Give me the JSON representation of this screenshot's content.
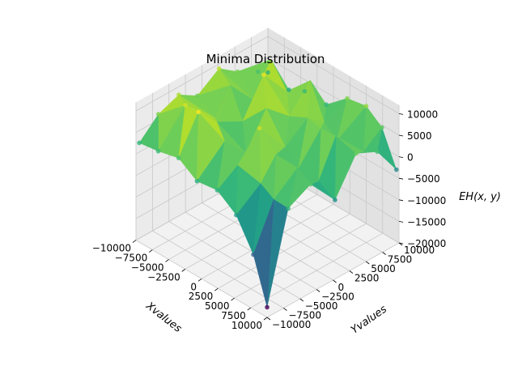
{
  "chart_data": {
    "type": "surface3d",
    "title": "Minima Distribution",
    "xlabel": "Xvalues",
    "ylabel": "Yvalues",
    "zlabel": "EH(x, y)",
    "xlim": [
      -10000,
      10000
    ],
    "ylim": [
      -10000,
      10000
    ],
    "zlim": [
      -20000,
      12000
    ],
    "x_ticks": [
      "−10000",
      "−7500",
      "−5000",
      "−2500",
      "0",
      "2500",
      "5000",
      "7500",
      "10000"
    ],
    "y_ticks": [
      "−10000",
      "−7500",
      "−5000",
      "−2500",
      "0",
      "2500",
      "5000",
      "7500",
      "10000"
    ],
    "z_ticks": [
      "−20000",
      "−15000",
      "−10000",
      "−5000",
      "0",
      "5000",
      "10000"
    ],
    "colormap": "viridis",
    "grid": true,
    "points": [
      {
        "x": -9800,
        "y": -9700,
        "z": 2500
      },
      {
        "x": -9600,
        "y": -7000,
        "z": 7000
      },
      {
        "x": -9500,
        "y": -4000,
        "z": 9000
      },
      {
        "x": -9700,
        "y": -1000,
        "z": 6000
      },
      {
        "x": -9400,
        "y": 2000,
        "z": 10000
      },
      {
        "x": -9600,
        "y": 5000,
        "z": 6500
      },
      {
        "x": -9500,
        "y": 8000,
        "z": 4000
      },
      {
        "x": -9800,
        "y": 9800,
        "z": 2000
      },
      {
        "x": -7000,
        "y": -9600,
        "z": 3000
      },
      {
        "x": -6500,
        "y": -6000,
        "z": 11000
      },
      {
        "x": -6000,
        "y": -2000,
        "z": 5000
      },
      {
        "x": -7200,
        "y": 1500,
        "z": 8500
      },
      {
        "x": -6800,
        "y": 4500,
        "z": 3000
      },
      {
        "x": -7000,
        "y": 7500,
        "z": 9500
      },
      {
        "x": -6500,
        "y": 9700,
        "z": 1000
      },
      {
        "x": -4000,
        "y": -9500,
        "z": 4000
      },
      {
        "x": -3500,
        "y": -7000,
        "z": 13000
      },
      {
        "x": -4200,
        "y": -3500,
        "z": 7000
      },
      {
        "x": -3800,
        "y": 0,
        "z": 4500
      },
      {
        "x": -4100,
        "y": 3500,
        "z": 12000
      },
      {
        "x": -3600,
        "y": 6500,
        "z": 6000
      },
      {
        "x": -4000,
        "y": 9600,
        "z": 3000
      },
      {
        "x": -1000,
        "y": -9700,
        "z": 1500
      },
      {
        "x": -500,
        "y": -6000,
        "z": 8000
      },
      {
        "x": -800,
        "y": -2500,
        "z": 2000
      },
      {
        "x": -1200,
        "y": 1000,
        "z": 9000
      },
      {
        "x": -700,
        "y": 4000,
        "z": 5000
      },
      {
        "x": -1000,
        "y": 7500,
        "z": 10000
      },
      {
        "x": -900,
        "y": 9800,
        "z": 2500
      },
      {
        "x": 2000,
        "y": -9600,
        "z": 2000
      },
      {
        "x": 2500,
        "y": -7000,
        "z": 6000
      },
      {
        "x": 1800,
        "y": -3000,
        "z": 10500
      },
      {
        "x": 2200,
        "y": 500,
        "z": 3500
      },
      {
        "x": 2600,
        "y": 3500,
        "z": 8000
      },
      {
        "x": 2100,
        "y": 6500,
        "z": 4000
      },
      {
        "x": 2400,
        "y": 9700,
        "z": 7000
      },
      {
        "x": 5000,
        "y": -9700,
        "z": -1000
      },
      {
        "x": 5500,
        "y": -6500,
        "z": 4000
      },
      {
        "x": 4800,
        "y": -3500,
        "z": 7500
      },
      {
        "x": 5200,
        "y": -500,
        "z": 2000
      },
      {
        "x": 5600,
        "y": 2500,
        "z": 9000
      },
      {
        "x": 5000,
        "y": 5500,
        "z": 3000
      },
      {
        "x": 5400,
        "y": 9600,
        "z": 8000
      },
      {
        "x": 7500,
        "y": -9600,
        "z": -8000
      },
      {
        "x": 8000,
        "y": -7000,
        "z": 3000
      },
      {
        "x": 7600,
        "y": -3000,
        "z": 6500
      },
      {
        "x": 7800,
        "y": 0,
        "z": 1000
      },
      {
        "x": 7400,
        "y": 3000,
        "z": 8500
      },
      {
        "x": 8100,
        "y": 6500,
        "z": 2500
      },
      {
        "x": 7700,
        "y": 9700,
        "z": 5000
      },
      {
        "x": 9800,
        "y": -9800,
        "z": -18000
      },
      {
        "x": 9700,
        "y": -6500,
        "z": 2000
      },
      {
        "x": 9600,
        "y": -3000,
        "z": 4500
      },
      {
        "x": 9800,
        "y": 500,
        "z": -2000
      },
      {
        "x": 9500,
        "y": 4000,
        "z": 5500
      },
      {
        "x": 9700,
        "y": 7000,
        "z": 3500
      },
      {
        "x": 9800,
        "y": 9800,
        "z": -3000
      }
    ]
  }
}
